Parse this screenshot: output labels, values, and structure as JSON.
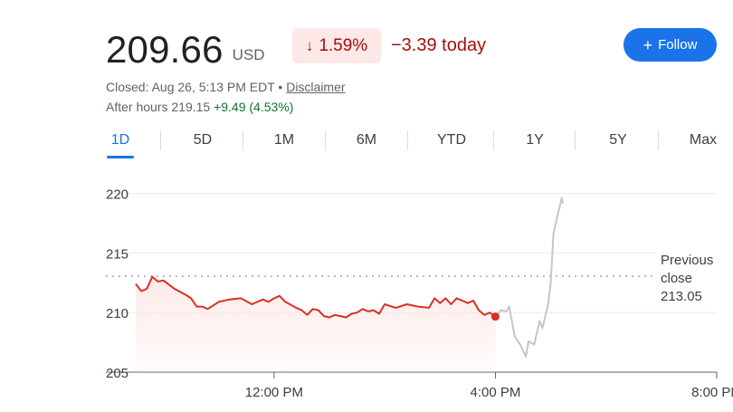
{
  "quote": {
    "price": "209.66",
    "currency": "USD",
    "change_percent": "1.59%",
    "change_today": "−3.39 today",
    "follow_label": "Follow",
    "closed_text": "Closed: Aug 26, 5:13 PM EDT •",
    "disclaimer": "Disclaimer",
    "after_hours_label": "After hours 219.15",
    "after_hours_change": "+9.49 (4.53%)"
  },
  "tabs": [
    "1D",
    "5D",
    "1M",
    "6M",
    "YTD",
    "1Y",
    "5Y",
    "Max"
  ],
  "active_tab": "1D",
  "colors": {
    "down": "#d93025",
    "after_hours_line": "#c4c7c5",
    "accent": "#1a73e8",
    "gain": "#137333"
  },
  "chart_data": {
    "type": "line",
    "y_ticks": [
      "220",
      "215",
      "210",
      "205"
    ],
    "x_ticks": [
      "12:00 PM",
      "4:00 PM",
      "8:00 PM"
    ],
    "ylim": [
      205,
      220.5
    ],
    "x_range_hours": [
      9.5,
      20
    ],
    "previous_close": {
      "value": 213.05,
      "label_lines": [
        "Previous",
        "close",
        "213.05"
      ]
    },
    "series": [
      {
        "session": "regular",
        "x": [
          9.5,
          9.6,
          9.7,
          9.8,
          9.9,
          10.0,
          10.2,
          10.4,
          10.5,
          10.6,
          10.7,
          10.8,
          10.9,
          11.0,
          11.2,
          11.4,
          11.6,
          11.8,
          11.9,
          12.0,
          12.1,
          12.2,
          12.4,
          12.5,
          12.6,
          12.7,
          12.8,
          12.9,
          13.0,
          13.1,
          13.2,
          13.3,
          13.4,
          13.5,
          13.6,
          13.7,
          13.8,
          13.9,
          14.0,
          14.2,
          14.4,
          14.6,
          14.8,
          14.9,
          15.0,
          15.1,
          15.2,
          15.3,
          15.4,
          15.5,
          15.6,
          15.7,
          15.8,
          15.9,
          16.0
        ],
        "values": [
          212.4,
          211.8,
          212.0,
          213.0,
          212.6,
          212.7,
          212.0,
          211.5,
          211.2,
          210.5,
          210.5,
          210.3,
          210.6,
          210.9,
          211.1,
          211.2,
          210.7,
          211.1,
          210.9,
          211.2,
          211.4,
          210.9,
          210.4,
          210.2,
          209.8,
          210.3,
          210.2,
          209.7,
          209.6,
          209.8,
          209.7,
          209.6,
          209.9,
          210.0,
          210.3,
          210.1,
          210.2,
          209.9,
          210.7,
          210.4,
          210.7,
          210.5,
          210.4,
          211.2,
          210.8,
          211.2,
          210.7,
          211.2,
          211.0,
          210.8,
          211.0,
          210.2,
          209.8,
          210.0,
          209.66
        ]
      },
      {
        "session": "after-hours",
        "x": [
          16.0,
          16.1,
          16.2,
          16.25,
          16.35,
          16.45,
          16.55,
          16.6,
          16.7,
          16.8,
          16.85,
          16.95,
          17.0,
          17.05,
          17.1,
          17.2,
          17.22
        ],
        "values": [
          209.66,
          210.2,
          210.1,
          210.5,
          208.0,
          207.3,
          206.3,
          207.6,
          207.3,
          209.3,
          208.7,
          210.6,
          212.5,
          216.6,
          217.7,
          219.6,
          219.15
        ]
      }
    ]
  }
}
